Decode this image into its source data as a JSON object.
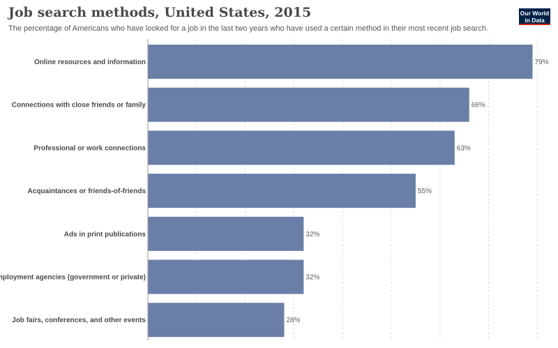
{
  "header": {
    "title": "Job search methods, United States, 2015",
    "subtitle": "The percentage of Americans who have looked for a job in the last two years who have used a certain method in their most recent job search."
  },
  "logo": {
    "line1": "Our World",
    "line2": "in Data"
  },
  "colors": {
    "bar": "#6a7fa8",
    "grid": "#dddddd",
    "axis": "#999999",
    "logo_bg": "#002147",
    "logo_accent": "#ce261e"
  },
  "chart_data": {
    "type": "bar",
    "orientation": "horizontal",
    "title": "Job search methods, United States, 2015",
    "categories": [
      "Online resources and information",
      "Connections with close friends or family",
      "Professional or work connections",
      "Acquaintances or friends-of-friends",
      "Ads in print publications",
      "Employment agencies (government or private)",
      "Job fairs, conferences, and other events"
    ],
    "values": [
      79,
      66,
      63,
      55,
      32,
      32,
      28
    ],
    "value_labels": [
      "79%",
      "66%",
      "63%",
      "55%",
      "32%",
      "32%",
      "28%"
    ],
    "unit": "%",
    "xlim": [
      0,
      80
    ],
    "grid": true,
    "legend": "none"
  }
}
